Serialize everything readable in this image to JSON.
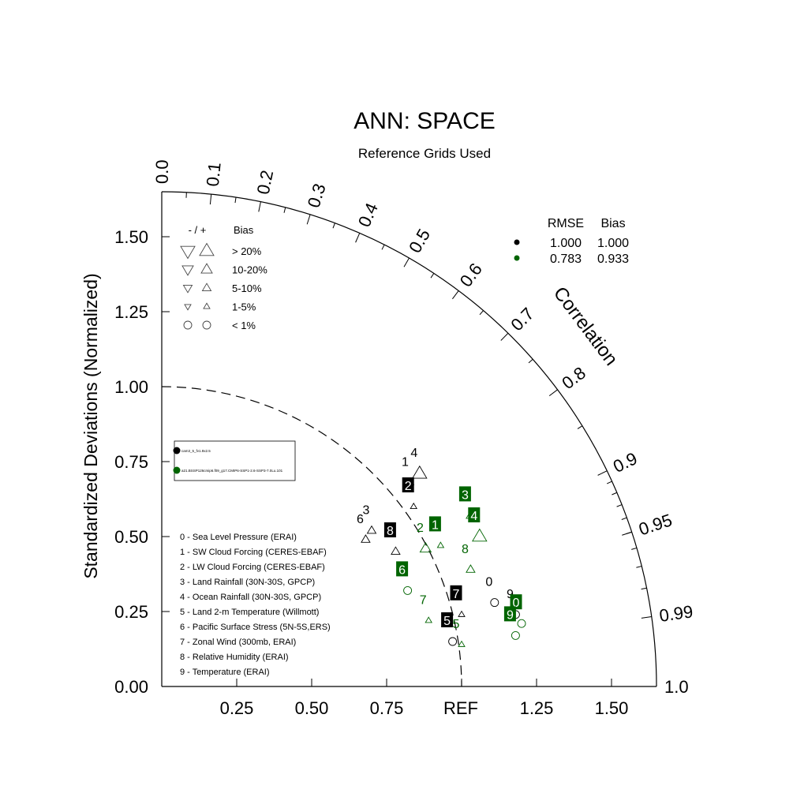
{
  "chart_data": {
    "type": "scatter",
    "title": "ANN: SPACE",
    "subtitle": "Reference Grids Used",
    "ylabel": "Standardized Deviations (Normalized)",
    "correlation_label": "Correlation",
    "ref_label": "REF",
    "std_max": 1.65,
    "std_ticks": [
      0.25,
      0.5,
      0.75,
      1.0,
      1.25,
      1.5
    ],
    "y_tick_labels": [
      "0.00",
      "0.25",
      "0.50",
      "0.75",
      "1.00",
      "1.25",
      "1.50"
    ],
    "x_tick_labels": [
      "0.25",
      "0.50",
      "0.75",
      "1.25",
      "1.50"
    ],
    "correlation_labels": [
      "0.0",
      "0.1",
      "0.2",
      "0.3",
      "0.4",
      "0.5",
      "0.6",
      "0.7",
      "0.8",
      "0.9",
      "0.95",
      "0.99",
      "1.0"
    ],
    "bias_legend": {
      "header_sign": "- / +",
      "header_bias": "Bias",
      "rows": [
        "> 20%",
        "10-20%",
        "5-10%",
        "1-5%",
        "< 1%"
      ]
    },
    "stats_legend": {
      "header_rmse": "RMSE",
      "header_bias": "Bias",
      "rows": [
        {
          "color": "#000000",
          "rmse": "1.000",
          "bias": "1.000"
        },
        {
          "color": "#006400",
          "rmse": "0.783",
          "bias": "0.933"
        }
      ]
    },
    "cases": [
      {
        "name": "cam3_5_fv1.9x2.5",
        "color": "#000000"
      },
      {
        "name": "a21.BSSP126cmip6.f09_g17.CMIP6-SSP1-2.6-SSP3-7.0Lu.101",
        "color": "#006400"
      }
    ],
    "variables": [
      "0 - Sea Level Pressure (ERAI)",
      "1 - SW Cloud Forcing (CERES-EBAF)",
      "2 - LW Cloud Forcing (CERES-EBAF)",
      "3 - Land Rainfall (30N-30S, GPCP)",
      "4 - Ocean Rainfall (30N-30S, GPCP)",
      "5 - Land 2-m Temperature (Willmott)",
      "6 - Pacific Surface Stress (5N-5S,ERS)",
      "7 - Zonal Wind (300mb, ERAI)",
      "8 - Relative Humidity (ERAI)",
      "9 - Temperature (ERAI)"
    ],
    "series": [
      {
        "name": "cam3_5_fv1.9x2.5",
        "color": "#000000",
        "points": [
          {
            "id": "0",
            "x": 1.11,
            "y": 0.28,
            "bias": "<1%",
            "label_style": "plain"
          },
          {
            "id": "1",
            "x": 0.83,
            "y": 0.68,
            "bias": "1-5%",
            "label_style": "plain"
          },
          {
            "id": "2",
            "x": 0.84,
            "y": 0.6,
            "bias": "1-5%",
            "label_style": "box"
          },
          {
            "id": "3",
            "x": 0.7,
            "y": 0.52,
            "bias": "5-10%",
            "label_style": "plain"
          },
          {
            "id": "4",
            "x": 0.86,
            "y": 0.71,
            "bias": ">20%",
            "label_style": "plain"
          },
          {
            "id": "5",
            "x": 0.97,
            "y": 0.15,
            "bias": "<1%",
            "label_style": "box"
          },
          {
            "id": "6",
            "x": 0.68,
            "y": 0.49,
            "bias": "5-10%",
            "label_style": "plain"
          },
          {
            "id": "7",
            "x": 1.0,
            "y": 0.24,
            "bias": "1-5%",
            "label_style": "box"
          },
          {
            "id": "8",
            "x": 0.78,
            "y": 0.45,
            "bias": "5-10%",
            "label_style": "box"
          },
          {
            "id": "9",
            "x": 1.18,
            "y": 0.24,
            "bias": "<1%",
            "label_style": "plain"
          }
        ]
      },
      {
        "name": "a21.BSSP126cmip6.f09_g17.CMIP6-SSP1-2.6-SSP3-7.0Lu.101",
        "color": "#006400",
        "points": [
          {
            "id": "0",
            "x": 1.2,
            "y": 0.21,
            "bias": "<1%",
            "label_style": "box"
          },
          {
            "id": "1",
            "x": 0.93,
            "y": 0.47,
            "bias": "1-5%",
            "label_style": "box"
          },
          {
            "id": "2",
            "x": 0.88,
            "y": 0.46,
            "bias": "10-20%",
            "label_style": "plain"
          },
          {
            "id": "3",
            "x": 1.03,
            "y": 0.57,
            "bias": "5-10%",
            "label_style": "box"
          },
          {
            "id": "4",
            "x": 1.06,
            "y": 0.5,
            "bias": ">20%",
            "label_style": "box"
          },
          {
            "id": "5",
            "x": 1.0,
            "y": 0.14,
            "bias": "1-5%",
            "label_style": "plain"
          },
          {
            "id": "6",
            "x": 0.82,
            "y": 0.32,
            "bias": "<1%",
            "label_style": "box"
          },
          {
            "id": "7",
            "x": 0.89,
            "y": 0.22,
            "bias": "1-5%",
            "label_style": "plain"
          },
          {
            "id": "8",
            "x": 1.03,
            "y": 0.39,
            "bias": "5-10%",
            "label_style": "plain"
          },
          {
            "id": "9",
            "x": 1.18,
            "y": 0.17,
            "bias": "<1%",
            "label_style": "box"
          }
        ]
      }
    ]
  }
}
